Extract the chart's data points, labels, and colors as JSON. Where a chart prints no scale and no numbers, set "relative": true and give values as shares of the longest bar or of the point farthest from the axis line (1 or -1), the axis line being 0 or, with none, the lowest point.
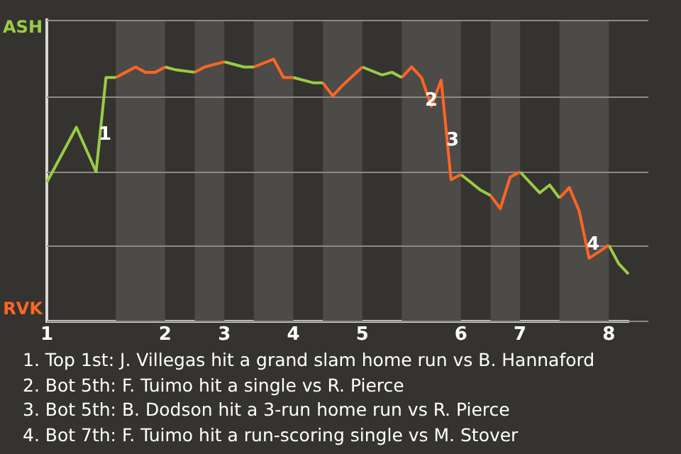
{
  "chart_data": {
    "type": "line",
    "relative": true,
    "categories": [
      "1",
      null,
      null,
      null,
      null,
      null,
      null,
      null,
      null,
      null,
      null,
      null,
      "2",
      null,
      null,
      null,
      null,
      null,
      "3",
      null,
      null,
      null,
      null,
      null,
      null,
      "4",
      null,
      null,
      null,
      null,
      null,
      null,
      "5",
      null,
      null,
      null,
      null,
      null,
      null,
      null,
      null,
      null,
      "6",
      null,
      null,
      null,
      null,
      null,
      "7",
      null,
      null,
      null,
      null,
      null,
      null,
      null,
      null,
      "8",
      null,
      null
    ],
    "series": [
      {
        "color": "#99cc44",
        "values": [
          0.53,
          null,
          null,
          0.74,
          null,
          0.57,
          0.93,
          0.93,
          null,
          null,
          null,
          null,
          null,
          null,
          null,
          null,
          null,
          null,
          null,
          null,
          null,
          null,
          null,
          null,
          null,
          null,
          null,
          null,
          null,
          null,
          null,
          null,
          null,
          null,
          null,
          null,
          null,
          null,
          null,
          null,
          null,
          null,
          null,
          null,
          null,
          null,
          null,
          null,
          null,
          null,
          null,
          null,
          null,
          null,
          null,
          null,
          null,
          null,
          null,
          null
        ]
      },
      {
        "color": "#ff6622",
        "values": [
          null,
          null,
          null,
          null,
          null,
          null,
          null,
          0.93,
          0.95,
          0.97,
          0.95,
          0.95,
          0.97,
          null,
          null,
          null,
          null,
          null,
          null,
          null,
          null,
          null,
          null,
          null,
          null,
          null,
          null,
          null,
          null,
          null,
          null,
          null,
          null,
          null,
          null,
          null,
          null,
          null,
          null,
          null,
          null,
          null,
          null,
          null,
          null,
          null,
          null,
          null,
          null,
          null,
          null,
          null,
          null,
          null,
          null,
          null,
          null,
          null,
          null,
          null
        ]
      },
      {
        "color": "#99cc44",
        "values": [
          null,
          null,
          null,
          null,
          null,
          null,
          null,
          null,
          null,
          null,
          null,
          null,
          0.97,
          0.96,
          null,
          0.95,
          null,
          null,
          null,
          null,
          null,
          null,
          null,
          null,
          null,
          null,
          null,
          null,
          null,
          null,
          null,
          null,
          null,
          null,
          null,
          null,
          null,
          null,
          null,
          null,
          null,
          null,
          null,
          null,
          null,
          null,
          null,
          null,
          null,
          null,
          null,
          null,
          null,
          null,
          null,
          null,
          null,
          null,
          null,
          null
        ]
      },
      {
        "color": "#ff6622",
        "values": [
          null,
          null,
          null,
          null,
          null,
          null,
          null,
          null,
          null,
          null,
          null,
          null,
          null,
          null,
          null,
          0.95,
          0.97,
          null,
          0.99,
          null,
          null,
          null,
          null,
          null,
          null,
          null,
          null,
          null,
          null,
          null,
          null,
          null,
          null,
          null,
          null,
          null,
          null,
          null,
          null,
          null,
          null,
          null,
          null,
          null,
          null,
          null,
          null,
          null,
          null,
          null,
          null,
          null,
          null,
          null,
          null,
          null,
          null,
          null,
          null,
          null
        ]
      },
      {
        "color": "#99cc44",
        "values": [
          null,
          null,
          null,
          null,
          null,
          null,
          null,
          null,
          null,
          null,
          null,
          null,
          null,
          null,
          null,
          null,
          null,
          null,
          0.99,
          0.98,
          0.97,
          0.97,
          null,
          null,
          null,
          null,
          null,
          null,
          null,
          null,
          null,
          null,
          null,
          null,
          null,
          null,
          null,
          null,
          null,
          null,
          null,
          null,
          null,
          null,
          null,
          null,
          null,
          null,
          null,
          null,
          null,
          null,
          null,
          null,
          null,
          null,
          null,
          null,
          null,
          null
        ]
      },
      {
        "color": "#ff6622",
        "values": [
          null,
          null,
          null,
          null,
          null,
          null,
          null,
          null,
          null,
          null,
          null,
          null,
          null,
          null,
          null,
          null,
          null,
          null,
          null,
          null,
          null,
          0.97,
          null,
          1,
          0.93,
          0.93,
          null,
          null,
          null,
          null,
          null,
          null,
          null,
          null,
          null,
          null,
          null,
          null,
          null,
          null,
          null,
          null,
          null,
          null,
          null,
          null,
          null,
          null,
          null,
          null,
          null,
          null,
          null,
          null,
          null,
          null,
          null,
          null,
          null,
          null
        ]
      },
      {
        "color": "#99cc44",
        "values": [
          null,
          null,
          null,
          null,
          null,
          null,
          null,
          null,
          null,
          null,
          null,
          null,
          null,
          null,
          null,
          null,
          null,
          null,
          null,
          null,
          null,
          null,
          null,
          null,
          null,
          0.93,
          null,
          0.91,
          0.91,
          null,
          null,
          null,
          null,
          null,
          null,
          null,
          null,
          null,
          null,
          null,
          null,
          null,
          null,
          null,
          null,
          null,
          null,
          null,
          null,
          null,
          null,
          null,
          null,
          null,
          null,
          null,
          null,
          null,
          null,
          null
        ]
      },
      {
        "color": "#ff6622",
        "values": [
          null,
          null,
          null,
          null,
          null,
          null,
          null,
          null,
          null,
          null,
          null,
          null,
          null,
          null,
          null,
          null,
          null,
          null,
          null,
          null,
          null,
          null,
          null,
          null,
          null,
          null,
          null,
          null,
          0.91,
          0.86,
          0.9,
          null,
          0.97,
          null,
          null,
          null,
          null,
          null,
          null,
          null,
          null,
          null,
          null,
          null,
          null,
          null,
          null,
          null,
          null,
          null,
          null,
          null,
          null,
          null,
          null,
          null,
          null,
          null,
          null,
          null
        ]
      },
      {
        "color": "#99cc44",
        "values": [
          null,
          null,
          null,
          null,
          null,
          null,
          null,
          null,
          null,
          null,
          null,
          null,
          null,
          null,
          null,
          null,
          null,
          null,
          null,
          null,
          null,
          null,
          null,
          null,
          null,
          null,
          null,
          null,
          null,
          null,
          null,
          null,
          0.97,
          null,
          0.94,
          0.95,
          0.93,
          null,
          null,
          null,
          null,
          null,
          null,
          null,
          null,
          null,
          null,
          null,
          null,
          null,
          null,
          null,
          null,
          null,
          null,
          null,
          null,
          null,
          null,
          null
        ]
      },
      {
        "color": "#ff6622",
        "values": [
          null,
          null,
          null,
          null,
          null,
          null,
          null,
          null,
          null,
          null,
          null,
          null,
          null,
          null,
          null,
          null,
          null,
          null,
          null,
          null,
          null,
          null,
          null,
          null,
          null,
          null,
          null,
          null,
          null,
          null,
          null,
          null,
          null,
          null,
          null,
          null,
          0.93,
          0.97,
          0.93,
          0.82,
          0.92,
          0.54,
          0.56,
          null,
          null,
          null,
          null,
          null,
          null,
          null,
          null,
          null,
          null,
          null,
          null,
          null,
          null,
          null,
          null,
          null
        ]
      },
      {
        "color": "#99cc44",
        "values": [
          null,
          null,
          null,
          null,
          null,
          null,
          null,
          null,
          null,
          null,
          null,
          null,
          null,
          null,
          null,
          null,
          null,
          null,
          null,
          null,
          null,
          null,
          null,
          null,
          null,
          null,
          null,
          null,
          null,
          null,
          null,
          null,
          null,
          null,
          null,
          null,
          null,
          null,
          null,
          null,
          null,
          null,
          0.56,
          null,
          0.5,
          0.48,
          null,
          null,
          null,
          null,
          null,
          null,
          null,
          null,
          null,
          null,
          null,
          null,
          null,
          null
        ]
      },
      {
        "color": "#ff6622",
        "values": [
          null,
          null,
          null,
          null,
          null,
          null,
          null,
          null,
          null,
          null,
          null,
          null,
          null,
          null,
          null,
          null,
          null,
          null,
          null,
          null,
          null,
          null,
          null,
          null,
          null,
          null,
          null,
          null,
          null,
          null,
          null,
          null,
          null,
          null,
          null,
          null,
          null,
          null,
          null,
          null,
          null,
          null,
          null,
          null,
          null,
          0.48,
          0.43,
          0.55,
          0.57,
          null,
          null,
          null,
          null,
          null,
          null,
          null,
          null,
          null,
          null,
          null
        ]
      },
      {
        "color": "#99cc44",
        "values": [
          null,
          null,
          null,
          null,
          null,
          null,
          null,
          null,
          null,
          null,
          null,
          null,
          null,
          null,
          null,
          null,
          null,
          null,
          null,
          null,
          null,
          null,
          null,
          null,
          null,
          null,
          null,
          null,
          null,
          null,
          null,
          null,
          null,
          null,
          null,
          null,
          null,
          null,
          null,
          null,
          null,
          null,
          null,
          null,
          null,
          null,
          null,
          null,
          0.57,
          0.53,
          0.49,
          0.52,
          0.47,
          null,
          null,
          null,
          null,
          null,
          null,
          null
        ]
      },
      {
        "color": "#ff6622",
        "values": [
          null,
          null,
          null,
          null,
          null,
          null,
          null,
          null,
          null,
          null,
          null,
          null,
          null,
          null,
          null,
          null,
          null,
          null,
          null,
          null,
          null,
          null,
          null,
          null,
          null,
          null,
          null,
          null,
          null,
          null,
          null,
          null,
          null,
          null,
          null,
          null,
          null,
          null,
          null,
          null,
          null,
          null,
          null,
          null,
          null,
          null,
          null,
          null,
          null,
          null,
          null,
          null,
          0.47,
          0.51,
          0.42,
          0.24,
          null,
          0.29,
          null,
          null
        ]
      },
      {
        "color": "#99cc44",
        "values": [
          null,
          null,
          null,
          null,
          null,
          null,
          null,
          null,
          null,
          null,
          null,
          null,
          null,
          null,
          null,
          null,
          null,
          null,
          null,
          null,
          null,
          null,
          null,
          null,
          null,
          null,
          null,
          null,
          null,
          null,
          null,
          null,
          null,
          null,
          null,
          null,
          null,
          null,
          null,
          null,
          null,
          null,
          null,
          null,
          null,
          null,
          null,
          null,
          null,
          null,
          null,
          null,
          null,
          null,
          null,
          null,
          null,
          0.29,
          0.22,
          0.18
        ]
      }
    ],
    "legend": false,
    "marker": "none",
    "line_style": "solid",
    "ref_lines": [
      {
        "axis": "y",
        "value": 1.15,
        "label": "ASH"
      },
      {
        "axis": "y",
        "value": 0.86
      },
      {
        "axis": "y",
        "value": 0.57
      },
      {
        "axis": "y",
        "value": 0.29
      },
      {
        "axis": "y",
        "value": 0,
        "label": "RVK"
      }
    ],
    "annotations": [
      {
        "text": "1",
        "y": 0.71
      },
      {
        "text": "2",
        "y": 0.84
      },
      {
        "text": "3",
        "y": 0.69
      },
      {
        "text": "4",
        "y": 0.29
      },
      "1. Top 1st: J. Villegas hit a grand slam home run vs B. Hannaford",
      "2. Bot 5th: F. Tuimo hit a single vs R. Pierce",
      "3. Bot 5th: B. Dodson hit a 3-run home run vs R. Pierce",
      "4. Bot 7th: F. Tuimo hit a run-scoring single vs M. Stover"
    ]
  }
}
